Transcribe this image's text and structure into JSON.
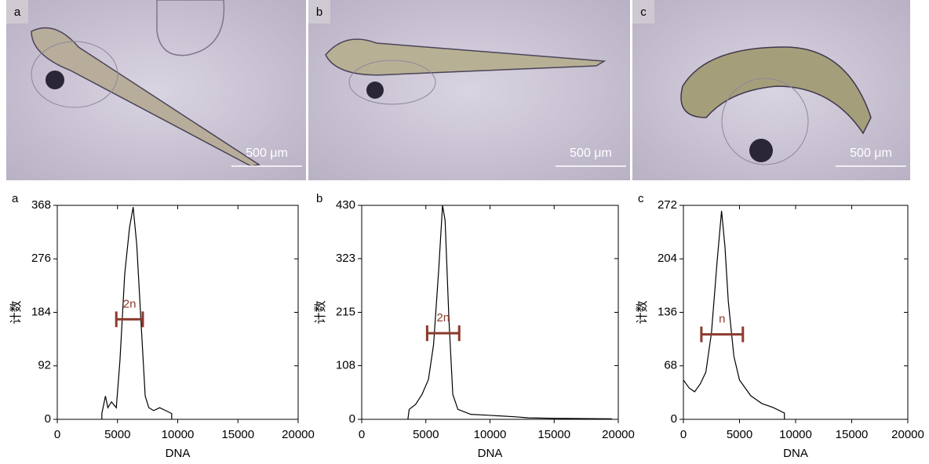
{
  "photos": [
    {
      "label": "a",
      "scale": "500 μm"
    },
    {
      "label": "b",
      "scale": "500 μm"
    },
    {
      "label": "c",
      "scale": "500 μm"
    }
  ],
  "chart_data": [
    {
      "type": "line",
      "panel": "a",
      "xlabel": "DNA",
      "ylabel": "计数",
      "color": "#000000",
      "x": [
        3700,
        3700,
        4000,
        4200,
        4500,
        4900,
        5200,
        5600,
        6000,
        6300,
        6600,
        7000,
        7300,
        7600,
        8000,
        8500,
        9000,
        9500,
        9500
      ],
      "values": [
        0,
        10,
        40,
        20,
        30,
        20,
        100,
        250,
        330,
        365,
        300,
        150,
        40,
        20,
        15,
        20,
        15,
        10,
        0
      ],
      "xlim": [
        0,
        20000
      ],
      "xticks": [
        0,
        5000,
        10000,
        15000,
        20000
      ],
      "ylim": [
        0,
        368
      ],
      "yticks": [
        0,
        92,
        184,
        276,
        368
      ],
      "gate": {
        "label": "2n",
        "x": [
          4900,
          7100
        ],
        "y": 172,
        "color": "#8b3a2e"
      }
    },
    {
      "type": "line",
      "panel": "b",
      "xlabel": "DNA",
      "ylabel": "计数",
      "color": "#000000",
      "x": [
        3600,
        3700,
        4200,
        4700,
        5200,
        5600,
        6000,
        6300,
        6500,
        6800,
        7100,
        7500,
        8500,
        10000,
        12000,
        13000,
        15000,
        19500
      ],
      "values": [
        0,
        20,
        30,
        50,
        80,
        150,
        300,
        430,
        400,
        200,
        50,
        20,
        10,
        8,
        5,
        3,
        2,
        1
      ],
      "xlim": [
        0,
        20000
      ],
      "xticks": [
        0,
        5000,
        10000,
        15000,
        20000
      ],
      "ylim": [
        0,
        430
      ],
      "yticks": [
        0,
        108,
        215,
        323,
        430
      ],
      "gate": {
        "label": "2n",
        "x": [
          5100,
          7600
        ],
        "y": 173,
        "color": "#8b3a2e"
      }
    },
    {
      "type": "line",
      "panel": "c",
      "xlabel": "DNA",
      "ylabel": "计数",
      "color": "#000000",
      "x": [
        0,
        500,
        1000,
        1500,
        2000,
        2500,
        3000,
        3400,
        3700,
        4000,
        4500,
        5000,
        5500,
        6000,
        7000,
        8000,
        9000,
        9000
      ],
      "values": [
        50,
        40,
        35,
        45,
        60,
        110,
        200,
        265,
        220,
        150,
        80,
        50,
        40,
        30,
        20,
        15,
        8,
        0
      ],
      "xlim": [
        0,
        20000
      ],
      "xticks": [
        0,
        5000,
        10000,
        15000,
        20000
      ],
      "ylim": [
        0,
        272
      ],
      "yticks": [
        0,
        68,
        136,
        204,
        272
      ],
      "gate": {
        "label": "n",
        "x": [
          1600,
          5300
        ],
        "y": 108,
        "color": "#8b3a2e"
      }
    }
  ]
}
